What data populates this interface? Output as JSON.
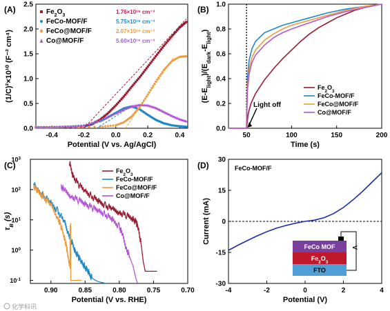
{
  "chart_data": [
    {
      "panel": "(A)",
      "type": "scatter",
      "xlabel": "Potential (V vs. Ag/AgCl)",
      "ylabel": "(1/C)²×10¹⁰ (F⁻² cm⁴)",
      "xlim": [
        -0.5,
        0.45
      ],
      "ylim": [
        0,
        2.5
      ],
      "xticks": [
        -0.4,
        -0.2,
        0.0,
        0.2,
        0.4
      ],
      "xtick_labels": [
        "-0.4",
        "-0.2",
        "0.0",
        "0.2",
        "0.4"
      ],
      "yticks": [
        0.0,
        0.5,
        1.0,
        1.5,
        2.0,
        2.5
      ],
      "ytick_labels": [
        "0.0",
        "0.5",
        "1.0",
        "1.5",
        "2.0",
        "2.5"
      ],
      "legend_position": "top-left",
      "series": [
        {
          "name": "Fe2O3",
          "label_main": "Fe",
          "label_sub1": "2",
          "label_mid": "O",
          "label_sub2": "3",
          "color": "#9b1b30",
          "marker": "square",
          "annotation": "1.76×10¹⁹ cm⁻³",
          "annotation_color": "#c2185b",
          "x": [
            -0.5,
            -0.4,
            -0.3,
            -0.2,
            -0.15,
            -0.1,
            -0.05,
            0.0,
            0.05,
            0.1,
            0.15,
            0.2,
            0.25,
            0.3,
            0.35,
            0.4,
            0.44
          ],
          "y": [
            0.02,
            0.02,
            0.03,
            0.04,
            0.08,
            0.17,
            0.3,
            0.46,
            0.64,
            0.84,
            1.03,
            1.24,
            1.45,
            1.66,
            1.85,
            2.03,
            2.14
          ]
        },
        {
          "name": "FeCo-MOF/F",
          "color": "#1e88c8",
          "marker": "circle",
          "annotation": "5.75×10¹⁹ cm⁻³",
          "annotation_color": "#1e88c8",
          "x": [
            -0.5,
            -0.4,
            -0.3,
            -0.2,
            -0.1,
            -0.05,
            0.0,
            0.05,
            0.1,
            0.15,
            0.2,
            0.25,
            0.3,
            0.35,
            0.4,
            0.44
          ],
          "y": [
            0.02,
            0.02,
            0.03,
            0.05,
            0.14,
            0.22,
            0.31,
            0.4,
            0.44,
            0.38,
            0.27,
            0.17,
            0.1,
            0.06,
            0.04,
            0.03
          ]
        },
        {
          "name": "FeCo@MOF/F",
          "color": "#f29a38",
          "marker": "diamond",
          "annotation": "2.07×10¹⁹ cm⁻³",
          "annotation_color": "#f29a38",
          "x": [
            -0.5,
            -0.3,
            -0.1,
            0.0,
            0.05,
            0.1,
            0.15,
            0.2,
            0.25,
            0.3,
            0.35,
            0.4,
            0.44
          ],
          "y": [
            0.02,
            0.02,
            0.03,
            0.06,
            0.12,
            0.24,
            0.43,
            0.68,
            0.94,
            1.17,
            1.35,
            1.44,
            1.45
          ]
        },
        {
          "name": "Co@MOF/F",
          "color": "#b455d6",
          "marker": "triangle",
          "annotation": "5.60×10¹⁹ cm⁻³",
          "annotation_color": "#9c5fcf",
          "x": [
            -0.5,
            -0.4,
            -0.3,
            -0.2,
            -0.1,
            0.0,
            0.05,
            0.1,
            0.15,
            0.2,
            0.25,
            0.3,
            0.35,
            0.4,
            0.44
          ],
          "y": [
            0.02,
            0.02,
            0.03,
            0.06,
            0.16,
            0.3,
            0.38,
            0.44,
            0.47,
            0.46,
            0.41,
            0.33,
            0.25,
            0.18,
            0.14
          ]
        }
      ]
    },
    {
      "panel": "(B)",
      "type": "line",
      "xlabel": "Time (s)",
      "ylabel": "(E-E_light)/(E_dark-E_light)",
      "xlim": [
        30,
        200
      ],
      "ylim": [
        0.0,
        1.0
      ],
      "xticks": [
        50,
        100,
        150,
        200
      ],
      "xtick_labels": [
        "50",
        "100",
        "150",
        "200"
      ],
      "yticks": [
        0.0,
        0.2,
        0.4,
        0.6,
        0.8,
        1.0
      ],
      "ytick_labels": [
        "0.0",
        "0.2",
        "0.4",
        "0.6",
        "0.8",
        "1.0"
      ],
      "annotation": "Light off",
      "annotation_x": 50,
      "legend_position": "bottom-right",
      "series": [
        {
          "name": "Fe2O3",
          "label_main": "Fe",
          "label_sub1": "2",
          "label_mid": "O",
          "label_sub2": "3",
          "color": "#9b1b30",
          "x": [
            30,
            49,
            50,
            52,
            55,
            60,
            70,
            80,
            90,
            100,
            110,
            120,
            130,
            140,
            150,
            160,
            170,
            180,
            190,
            200
          ],
          "y": [
            0.0,
            0.0,
            0.0,
            0.12,
            0.2,
            0.28,
            0.39,
            0.48,
            0.56,
            0.63,
            0.7,
            0.76,
            0.81,
            0.85,
            0.89,
            0.92,
            0.95,
            0.97,
            0.99,
            1.0
          ]
        },
        {
          "name": "FeCo-MOF/F",
          "color": "#1e88c8",
          "x": [
            30,
            49,
            50,
            51,
            53,
            56,
            60,
            70,
            80,
            90,
            100,
            120,
            140,
            160,
            180,
            200
          ],
          "y": [
            0.0,
            0.0,
            0.0,
            0.4,
            0.55,
            0.64,
            0.7,
            0.77,
            0.8,
            0.83,
            0.85,
            0.89,
            0.93,
            0.96,
            0.98,
            1.0
          ]
        },
        {
          "name": "FeCo@MOF/F",
          "color": "#f29a38",
          "x": [
            30,
            49,
            50,
            51,
            53,
            56,
            60,
            70,
            80,
            90,
            100,
            120,
            140,
            160,
            180,
            200
          ],
          "y": [
            0.0,
            0.0,
            0.0,
            0.33,
            0.48,
            0.57,
            0.63,
            0.71,
            0.76,
            0.8,
            0.83,
            0.87,
            0.91,
            0.95,
            0.98,
            1.0
          ]
        },
        {
          "name": "Co@MOF/F",
          "color": "#b455d6",
          "x": [
            30,
            49,
            50,
            51,
            53,
            56,
            60,
            70,
            80,
            90,
            100,
            120,
            140,
            160,
            180,
            200
          ],
          "y": [
            0.0,
            0.0,
            0.0,
            0.3,
            0.44,
            0.53,
            0.59,
            0.67,
            0.73,
            0.77,
            0.8,
            0.85,
            0.9,
            0.94,
            0.97,
            1.0
          ]
        }
      ]
    },
    {
      "panel": "(C)",
      "type": "line",
      "xlabel": "Potential (V vs. RHE)",
      "ylabel": "τB (s)",
      "ylabel_main": "τ",
      "ylabel_sub": "B",
      "ylabel_unit": "(s)",
      "xlim": [
        0.93,
        0.7
      ],
      "ylim_log10": [
        -1.1,
        3
      ],
      "xticks": [
        0.9,
        0.85,
        0.8,
        0.75,
        0.7
      ],
      "xtick_labels": [
        "0.90",
        "0.85",
        "0.80",
        "0.75",
        "0.70"
      ],
      "ytick_exponents": [
        -1,
        0,
        1,
        2,
        3
      ],
      "ytick_base": "10",
      "ytick_labels": [
        "-1",
        "0",
        "1",
        "2",
        "3"
      ],
      "yscale": "log",
      "legend_position": "top-right",
      "series": [
        {
          "name": "Fe2O3",
          "label_main": "Fe",
          "label_sub1": "2",
          "label_mid": "O",
          "label_sub2": "3",
          "color": "#9b1b30",
          "x": [
            0.873,
            0.868,
            0.86,
            0.85,
            0.84,
            0.83,
            0.82,
            0.81,
            0.8,
            0.79,
            0.78,
            0.775,
            0.772,
            0.768,
            0.765,
            0.762,
            0.75,
            0.745
          ],
          "y": [
            800,
            300,
            150,
            90,
            60,
            40,
            30,
            22,
            18,
            14,
            11,
            8,
            5,
            1.5,
            0.4,
            0.2,
            0.2,
            0.2
          ]
        },
        {
          "name": "FeCo-MOF/F",
          "color": "#1e88c8",
          "x": [
            0.925,
            0.92,
            0.91,
            0.9,
            0.89,
            0.88,
            0.875,
            0.87,
            0.865,
            0.86,
            0.855,
            0.85,
            0.845,
            0.84,
            0.835,
            0.83,
            0.825,
            0.82
          ],
          "y": [
            150,
            100,
            60,
            35,
            20,
            8,
            4,
            2,
            1.0,
            0.6,
            0.4,
            0.28,
            0.18,
            0.12,
            0.1,
            0.09,
            0.085,
            0.08
          ]
        },
        {
          "name": "FeCo@MOF/F",
          "color": "#f29a38",
          "x": [
            0.925,
            0.92,
            0.91,
            0.9,
            0.89,
            0.885,
            0.88,
            0.877,
            0.875,
            0.872,
            0.872,
            0.871,
            0.871,
            0.865,
            0.86,
            0.855
          ],
          "y": [
            130,
            90,
            55,
            30,
            12,
            6,
            2.5,
            1.2,
            0.6,
            0.3,
            5,
            6,
            0.1,
            0.1,
            0.1,
            0.1
          ]
        },
        {
          "name": "Co@MOF/F",
          "color": "#b455d6",
          "x": [
            0.885,
            0.88,
            0.87,
            0.86,
            0.85,
            0.84,
            0.83,
            0.82,
            0.81,
            0.8,
            0.795,
            0.79,
            0.785,
            0.78,
            0.777,
            0.775,
            0.773
          ],
          "y": [
            130,
            90,
            60,
            45,
            35,
            25,
            20,
            15,
            10,
            6,
            3,
            1.2,
            0.6,
            0.3,
            0.15,
            0.1,
            0.08
          ]
        }
      ]
    },
    {
      "panel": "(D)",
      "type": "line",
      "title": "FeCo-MOF/F",
      "xlabel": "Potential (V)",
      "ylabel": "Current (mA)",
      "xlim": [
        -4,
        4
      ],
      "ylim": [
        -30,
        30
      ],
      "xticks": [
        -4,
        -2,
        0,
        2,
        4
      ],
      "xtick_labels": [
        "-4",
        "-2",
        "0",
        "2",
        "4"
      ],
      "yticks": [
        -30,
        -15,
        0,
        15,
        30
      ],
      "ytick_labels": [
        "-30",
        "-15",
        "0",
        "15",
        "30"
      ],
      "zero_line": "dotted",
      "series": [
        {
          "name": "FeCo-MOF/F",
          "color": "#1a2bb0",
          "x": [
            -4,
            -3.5,
            -3,
            -2.5,
            -2,
            -1.5,
            -1,
            -0.5,
            0,
            0.5,
            1,
            1.5,
            2,
            2.5,
            3,
            3.5,
            4
          ],
          "y": [
            -14,
            -11.5,
            -9.2,
            -7,
            -5,
            -3.3,
            -2,
            -0.9,
            0,
            0.6,
            1.8,
            3.8,
            6.7,
            10.4,
            14.5,
            19,
            23.5
          ]
        }
      ],
      "device_layers": [
        {
          "label": "FeCo MOF",
          "color": "#7b3fa0"
        },
        {
          "label": "Fe2O3",
          "label_main": "Fe",
          "label_sub1": "2",
          "label_mid": "O",
          "label_sub2": "3",
          "color": "#c0192c"
        },
        {
          "label": "FTO",
          "color": "#4f9fd6"
        }
      ],
      "device_meter": "V"
    }
  ],
  "watermark": "化学科讯"
}
